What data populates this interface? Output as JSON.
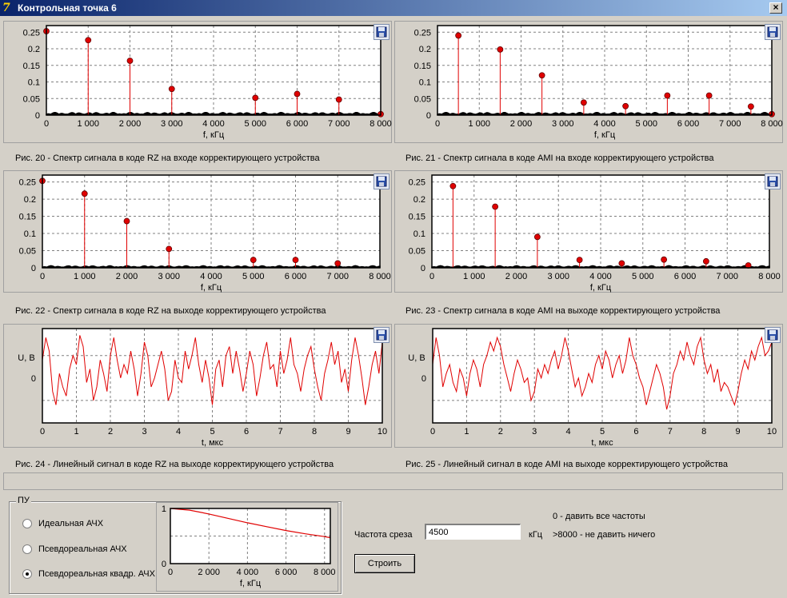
{
  "window": {
    "title": "Контрольная точка 6",
    "close_label": "×",
    "icon": "app-logo-icon"
  },
  "plots": [
    {
      "id": "fig20",
      "caption": "Рис. 20 - Спектр сигнала в коде RZ на входе корректирующего устройства",
      "chart_data": {
        "type": "stem",
        "xlabel": "f, кГц",
        "ylabel": "",
        "xlim": [
          0,
          8000
        ],
        "ylim": [
          0,
          0.27
        ],
        "xticks": [
          0,
          1000,
          2000,
          3000,
          4000,
          5000,
          6000,
          7000,
          8000
        ],
        "xtick_labels": [
          "0",
          "1 000",
          "2 000",
          "3 000",
          "4 000",
          "5 000",
          "6 000",
          "7 000",
          "8 000"
        ],
        "yticks": [
          0,
          0.05,
          0.1,
          0.15,
          0.2,
          0.25
        ],
        "ytick_labels": [
          "0",
          "0.05",
          "0.1",
          "0.15",
          "0.2",
          "0.25"
        ],
        "x": [
          0,
          1000,
          2000,
          3000,
          5000,
          6000,
          7000,
          8000
        ],
        "y": [
          0.253,
          0.226,
          0.164,
          0.079,
          0.052,
          0.064,
          0.047,
          0.003
        ],
        "noise_level": 0.008,
        "grid": true
      }
    },
    {
      "id": "fig21",
      "caption": "Рис. 21 - Спектр сигнала в коде AMI на входе корректирующего устройства",
      "chart_data": {
        "type": "stem",
        "xlabel": "f, кГц",
        "ylabel": "",
        "xlim": [
          0,
          8000
        ],
        "ylim": [
          0,
          0.27
        ],
        "xticks": [
          0,
          1000,
          2000,
          3000,
          4000,
          5000,
          6000,
          7000,
          8000
        ],
        "xtick_labels": [
          "0",
          "1 000",
          "2 000",
          "3 000",
          "4 000",
          "5 000",
          "6 000",
          "7 000",
          "8 000"
        ],
        "yticks": [
          0,
          0.05,
          0.1,
          0.15,
          0.2,
          0.25
        ],
        "ytick_labels": [
          "0",
          "0.05",
          "0.1",
          "0.15",
          "0.2",
          "0.25"
        ],
        "x": [
          500,
          1500,
          2500,
          3500,
          4500,
          5500,
          6500,
          7500,
          8000
        ],
        "y": [
          0.24,
          0.198,
          0.12,
          0.038,
          0.027,
          0.059,
          0.059,
          0.026,
          0.003
        ],
        "noise_level": 0.008,
        "grid": true
      }
    },
    {
      "id": "fig22",
      "caption": "Рис. 22 - Спектр сигнала в коде RZ на выходе корректирующего устройства",
      "chart_data": {
        "type": "stem",
        "xlabel": "f, кГц",
        "ylabel": "",
        "xlim": [
          0,
          8000
        ],
        "ylim": [
          0,
          0.27
        ],
        "xticks": [
          0,
          1000,
          2000,
          3000,
          4000,
          5000,
          6000,
          7000,
          8000
        ],
        "xtick_labels": [
          "0",
          "1 000",
          "2 000",
          "3 000",
          "4 000",
          "5 000",
          "6 000",
          "7 000",
          "8 000"
        ],
        "yticks": [
          0,
          0.05,
          0.1,
          0.15,
          0.2,
          0.25
        ],
        "ytick_labels": [
          "0",
          "0.05",
          "0.1",
          "0.15",
          "0.2",
          "0.25"
        ],
        "x": [
          0,
          1000,
          2000,
          3000,
          5000,
          6000,
          7000
        ],
        "y": [
          0.253,
          0.216,
          0.136,
          0.055,
          0.023,
          0.023,
          0.013
        ],
        "noise_level": 0.006,
        "grid": true
      }
    },
    {
      "id": "fig23",
      "caption": "Рис. 23 - Спектр сигнала в коде AMI на выходе корректирующего устройства",
      "chart_data": {
        "type": "stem",
        "xlabel": "f, кГц",
        "ylabel": "",
        "xlim": [
          0,
          8000
        ],
        "ylim": [
          0,
          0.27
        ],
        "xticks": [
          0,
          1000,
          2000,
          3000,
          4000,
          5000,
          6000,
          7000,
          8000
        ],
        "xtick_labels": [
          "0",
          "1 000",
          "2 000",
          "3 000",
          "4 000",
          "5 000",
          "6 000",
          "7 000",
          "8 000"
        ],
        "yticks": [
          0,
          0.05,
          0.1,
          0.15,
          0.2,
          0.25
        ],
        "ytick_labels": [
          "0",
          "0.05",
          "0.1",
          "0.15",
          "0.2",
          "0.25"
        ],
        "x": [
          500,
          1500,
          2500,
          3500,
          4500,
          5500,
          6500,
          7500
        ],
        "y": [
          0.238,
          0.178,
          0.09,
          0.023,
          0.013,
          0.024,
          0.019,
          0.007
        ],
        "noise_level": 0.006,
        "grid": true
      }
    },
    {
      "id": "fig24",
      "caption": "Рис. 24 - Линейный сигнал в коде RZ на выходе корректирующего устройства",
      "chart_data": {
        "type": "line",
        "xlabel": "t, мкс",
        "ylabel": "U, В",
        "xlim": [
          0,
          10
        ],
        "ylim": [
          -1,
          1.1
        ],
        "xticks": [
          0,
          1,
          2,
          3,
          4,
          5,
          6,
          7,
          8,
          9,
          10
        ],
        "xtick_labels": [
          "0",
          "1",
          "2",
          "3",
          "4",
          "5",
          "6",
          "7",
          "8",
          "9",
          "10"
        ],
        "yticks": [
          0
        ],
        "ytick_labels": [
          "0"
        ],
        "x": [
          0,
          0.1,
          0.2,
          0.3,
          0.4,
          0.5,
          0.6,
          0.7,
          0.8,
          0.9,
          1.0,
          1.1,
          1.2,
          1.3,
          1.4,
          1.5,
          1.6,
          1.7,
          1.8,
          1.9,
          2.0,
          2.1,
          2.2,
          2.3,
          2.4,
          2.5,
          2.6,
          2.7,
          2.8,
          2.9,
          3.0,
          3.1,
          3.2,
          3.3,
          3.4,
          3.5,
          3.6,
          3.7,
          3.8,
          3.9,
          4.0,
          4.1,
          4.2,
          4.3,
          4.4,
          4.5,
          4.6,
          4.7,
          4.8,
          4.9,
          5.0,
          5.1,
          5.2,
          5.3,
          5.4,
          5.5,
          5.6,
          5.7,
          5.8,
          5.9,
          6.0,
          6.1,
          6.2,
          6.3,
          6.4,
          6.5,
          6.6,
          6.7,
          6.8,
          6.9,
          7.0,
          7.1,
          7.2,
          7.3,
          7.4,
          7.5,
          7.6,
          7.7,
          7.8,
          7.9,
          8.0,
          8.1,
          8.2,
          8.3,
          8.4,
          8.5,
          8.6,
          8.7,
          8.8,
          8.9,
          9.0,
          9.1,
          9.2,
          9.3,
          9.4,
          9.5,
          9.6,
          9.7,
          9.8,
          9.9,
          10.0
        ],
        "y": [
          0.4,
          0.9,
          0.6,
          -0.3,
          -0.6,
          0.1,
          -0.2,
          -0.4,
          0.2,
          0.5,
          0.3,
          0.95,
          0.7,
          -0.1,
          0.2,
          -0.5,
          -0.2,
          0.4,
          0.1,
          -0.3,
          0.5,
          0.9,
          0.4,
          0.0,
          0.3,
          0.1,
          0.6,
          0.2,
          -0.4,
          0.1,
          0.8,
          0.5,
          -0.2,
          0.0,
          0.3,
          0.6,
          0.2,
          -0.5,
          -0.3,
          0.4,
          0.0,
          -0.1,
          0.6,
          0.2,
          0.5,
          0.9,
          0.3,
          -0.1,
          0.4,
          0.0,
          -0.6,
          0.2,
          0.4,
          -0.2,
          0.5,
          0.7,
          0.1,
          0.6,
          0.2,
          -0.3,
          0.1,
          0.6,
          0.3,
          -0.4,
          0.0,
          0.5,
          0.8,
          0.2,
          0.3,
          -0.2,
          0.6,
          0.1,
          0.4,
          0.9,
          0.3,
          0.1,
          -0.3,
          0.2,
          0.5,
          0.7,
          0.2,
          -0.2,
          -0.5,
          0.1,
          0.4,
          0.8,
          0.3,
          0.6,
          -0.1,
          0.2,
          -0.3,
          0.4,
          0.9,
          0.5,
          0.0,
          -0.6,
          -0.2,
          0.3,
          0.6,
          0.1,
          0.8
        ]
      }
    },
    {
      "id": "fig25",
      "caption": "Рис. 25 - Линейный сигнал в коде AMI на выходе корректирующего устройства",
      "chart_data": {
        "type": "line",
        "xlabel": "t, мкс",
        "ylabel": "U, В",
        "xlim": [
          0,
          10
        ],
        "ylim": [
          -1,
          1.1
        ],
        "xticks": [
          0,
          1,
          2,
          3,
          4,
          5,
          6,
          7,
          8,
          9,
          10
        ],
        "xtick_labels": [
          "0",
          "1",
          "2",
          "3",
          "4",
          "5",
          "6",
          "7",
          "8",
          "9",
          "10"
        ],
        "yticks": [
          0
        ],
        "ytick_labels": [
          "0"
        ],
        "x": [
          0,
          0.1,
          0.2,
          0.3,
          0.4,
          0.5,
          0.6,
          0.7,
          0.8,
          0.9,
          1.0,
          1.1,
          1.2,
          1.3,
          1.4,
          1.5,
          1.6,
          1.7,
          1.8,
          1.9,
          2.0,
          2.1,
          2.2,
          2.3,
          2.4,
          2.5,
          2.6,
          2.7,
          2.8,
          2.9,
          3.0,
          3.1,
          3.2,
          3.3,
          3.4,
          3.5,
          3.6,
          3.7,
          3.8,
          3.9,
          4.0,
          4.1,
          4.2,
          4.3,
          4.4,
          4.5,
          4.6,
          4.7,
          4.8,
          4.9,
          5.0,
          5.1,
          5.2,
          5.3,
          5.4,
          5.5,
          5.6,
          5.7,
          5.8,
          5.9,
          6.0,
          6.1,
          6.2,
          6.3,
          6.4,
          6.5,
          6.6,
          6.7,
          6.8,
          6.9,
          7.0,
          7.1,
          7.2,
          7.3,
          7.4,
          7.5,
          7.6,
          7.7,
          7.8,
          7.9,
          8.0,
          8.1,
          8.2,
          8.3,
          8.4,
          8.5,
          8.6,
          8.7,
          8.8,
          8.9,
          9.0,
          9.1,
          9.2,
          9.3,
          9.4,
          9.5,
          9.6,
          9.7,
          9.8,
          9.9,
          10.0
        ],
        "y": [
          0.3,
          0.9,
          0.5,
          -0.2,
          0.1,
          0.3,
          -0.1,
          -0.3,
          0.2,
          0.0,
          -0.4,
          0.1,
          0.4,
          0.2,
          -0.2,
          0.3,
          0.5,
          0.8,
          0.6,
          0.9,
          0.7,
          0.3,
          0.0,
          -0.3,
          0.1,
          0.4,
          0.2,
          -0.1,
          0.0,
          -0.5,
          -0.3,
          0.2,
          0.0,
          0.3,
          0.1,
          0.4,
          0.6,
          0.2,
          0.5,
          0.9,
          0.6,
          0.2,
          -0.2,
          0.0,
          -0.4,
          -0.2,
          0.1,
          -0.1,
          0.3,
          0.5,
          0.2,
          0.6,
          0.4,
          0.0,
          0.3,
          0.5,
          0.1,
          0.4,
          0.9,
          0.5,
          0.3,
          0.0,
          -0.2,
          -0.6,
          -0.3,
          0.0,
          0.3,
          0.1,
          -0.2,
          -0.7,
          -0.4,
          0.1,
          0.3,
          0.6,
          0.4,
          0.8,
          0.5,
          0.3,
          0.7,
          0.9,
          0.4,
          0.1,
          0.3,
          -0.1,
          0.2,
          -0.3,
          -0.1,
          -0.2,
          -0.4,
          -0.6,
          -0.3,
          0.1,
          0.4,
          0.2,
          0.6,
          0.4,
          0.7,
          0.9,
          0.5,
          0.6,
          0.8
        ]
      }
    }
  ],
  "control_panel": {
    "title": "ПУ",
    "radios": [
      {
        "label": "Идеальная АЧХ",
        "checked": false
      },
      {
        "label": "Псевдореальная АЧХ",
        "checked": false
      },
      {
        "label": "Псевдореальная квадр. АЧХ",
        "checked": true
      }
    ],
    "response_chart": {
      "chart_data": {
        "type": "line",
        "xlabel": "f, кГц",
        "ylabel": "",
        "xlim": [
          0,
          8300
        ],
        "ylim": [
          0,
          1
        ],
        "xticks": [
          0,
          2000,
          4000,
          6000,
          8000
        ],
        "xtick_labels": [
          "0",
          "2 000",
          "4 000",
          "6 000",
          "8 000"
        ],
        "yticks": [
          0,
          1
        ],
        "ytick_labels": [
          "0",
          "1"
        ],
        "x": [
          0,
          1000,
          2000,
          3000,
          4000,
          5000,
          6000,
          7000,
          8000,
          8300
        ],
        "y": [
          1.0,
          0.97,
          0.9,
          0.82,
          0.74,
          0.67,
          0.6,
          0.54,
          0.49,
          0.47
        ]
      }
    },
    "cutoff_label": "Частота среза",
    "cutoff_value": "4500",
    "cutoff_unit": "кГц",
    "hint_all": "0 - давить все частоты",
    "hint_none": ">8000 - не давить ничего",
    "build_label": "Строить"
  }
}
